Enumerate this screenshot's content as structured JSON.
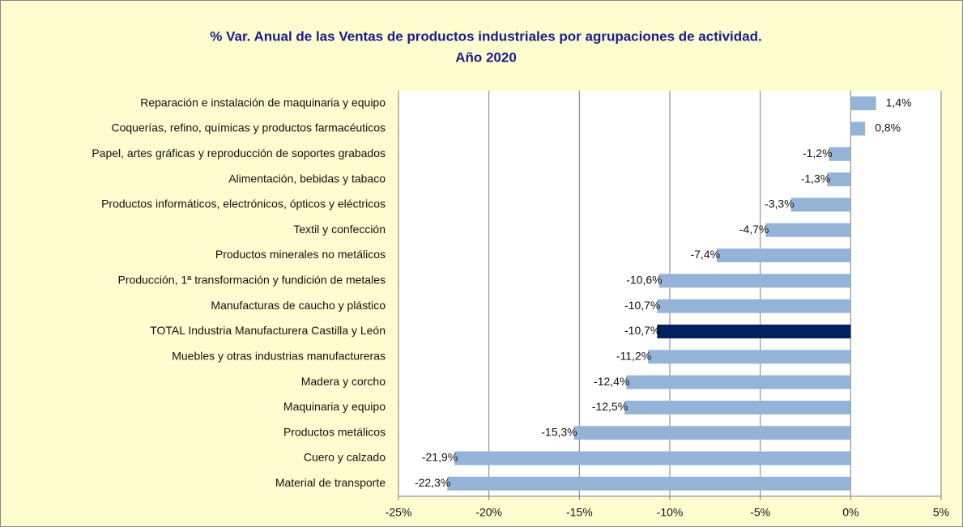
{
  "chart_data": {
    "type": "bar",
    "orientation": "horizontal",
    "title": [
      "% Var. Anual de las Ventas de productos industriales por agrupaciones de actividad.",
      "Año 2020"
    ],
    "categories": [
      "Reparación e instalación de maquinaria y equipo",
      "Coquerías, refino, químicas y productos farmacéuticos",
      "Papel, artes gráficas y reproducción de soportes grabados",
      "Alimentación, bebidas y tabaco",
      "Productos informáticos, electrónicos, ópticos y eléctricos",
      "Textil y confección",
      "Productos minerales no metálicos",
      "Producción, 1ª transformación y fundición de metales",
      "Manufacturas de caucho y plástico",
      "TOTAL Industria Manufacturera Castilla y León",
      "Muebles y otras industrias manufactureras",
      "Madera y corcho",
      "Maquinaria y equipo",
      "Productos  metálicos",
      "Cuero y calzado",
      "Material de transporte"
    ],
    "values": [
      1.4,
      0.8,
      -1.2,
      -1.3,
      -3.3,
      -4.7,
      -7.4,
      -10.6,
      -10.7,
      -10.7,
      -11.2,
      -12.4,
      -12.5,
      -15.3,
      -21.9,
      -22.3
    ],
    "value_labels": [
      "1,4%",
      "0,8%",
      "-1,2%",
      "-1,3%",
      "-3,3%",
      "-4,7%",
      "-7,4%",
      "-10,6%",
      "-10,7%",
      "-10,7%",
      "-11,2%",
      "-12,4%",
      "-12,5%",
      "-15,3%",
      "-21,9%",
      "-22,3%"
    ],
    "colors": [
      "#95b3d7",
      "#95b3d7",
      "#95b3d7",
      "#95b3d7",
      "#95b3d7",
      "#95b3d7",
      "#95b3d7",
      "#95b3d7",
      "#95b3d7",
      "#002060",
      "#95b3d7",
      "#95b3d7",
      "#95b3d7",
      "#95b3d7",
      "#95b3d7",
      "#95b3d7"
    ],
    "xlim": [
      -25,
      5
    ],
    "xticks": [
      {
        "value": -25,
        "label": "-25%"
      },
      {
        "value": -20,
        "label": "-20%"
      },
      {
        "value": -15,
        "label": "-15%"
      },
      {
        "value": -10,
        "label": "-10%"
      },
      {
        "value": -5,
        "label": "-5%"
      },
      {
        "value": 0,
        "label": "0%"
      },
      {
        "value": 5,
        "label": "5%"
      }
    ],
    "grid": true
  }
}
